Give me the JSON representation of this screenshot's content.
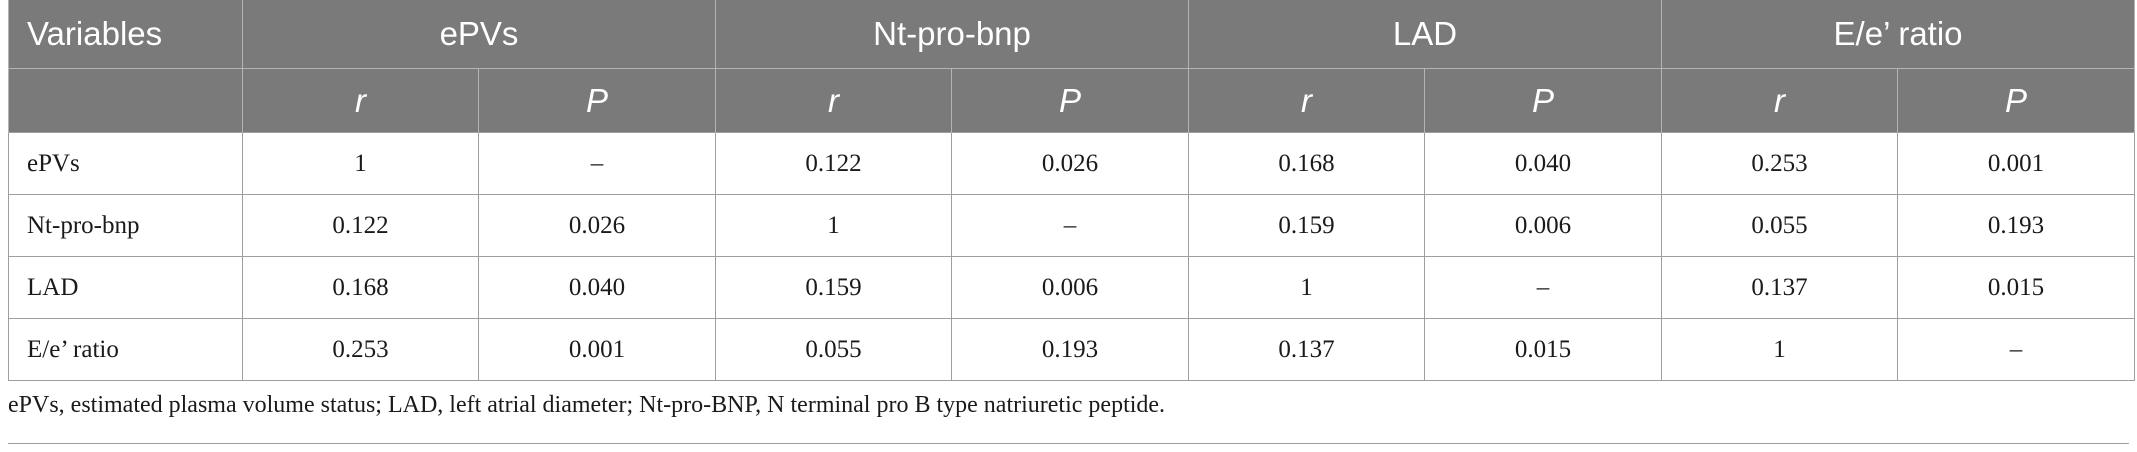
{
  "table": {
    "header": {
      "variables_label": "Variables",
      "groups": [
        "ePVs",
        "Nt-pro-bnp",
        "LAD",
        "E/e’ ratio"
      ],
      "sub": [
        "r",
        "P"
      ]
    },
    "rows": [
      {
        "label": "ePVs",
        "values": [
          "1",
          "–",
          "0.122",
          "0.026",
          "0.168",
          "0.040",
          "0.253",
          "0.001"
        ]
      },
      {
        "label": "Nt-pro-bnp",
        "values": [
          "0.122",
          "0.026",
          "1",
          "–",
          "0.159",
          "0.006",
          "0.055",
          "0.193"
        ]
      },
      {
        "label": "LAD",
        "values": [
          "0.168",
          "0.040",
          "0.159",
          "0.006",
          "1",
          "–",
          "0.137",
          "0.015"
        ]
      },
      {
        "label": "E/e’ ratio",
        "values": [
          "0.253",
          "0.001",
          "0.055",
          "0.193",
          "0.137",
          "0.015",
          "1",
          "–"
        ]
      }
    ]
  },
  "footnote": "ePVs, estimated plasma volume status; LAD, left atrial diameter; Nt-pro-BNP, N terminal pro B type natriuretic peptide."
}
